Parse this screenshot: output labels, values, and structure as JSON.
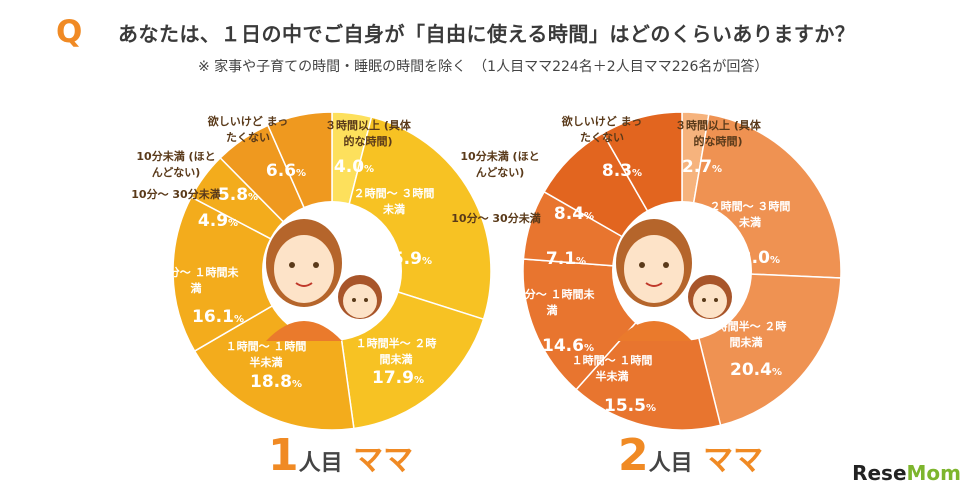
{
  "header": {
    "q_mark": "Q",
    "question": "あなたは、１日の中でご自身が「自由に使える時間」はどのくらいありますか？",
    "note": "※ 家事や子育ての時間・睡眠の時間を除く　（1人目ママ224名＋2人目ママ226名が回答）"
  },
  "brand": {
    "prefix": "Rese",
    "suffix": "Mom"
  },
  "chart_data": [
    {
      "type": "pie",
      "title": "1人目ママ",
      "categories": [
        "3時間以上 (具体的な時間)",
        "2時間～3時間未満",
        "1時間半～2時間未満",
        "1時間～1時間半未満",
        "30分～1時間未満",
        "10分～30分未満",
        "10分未満 (ほとんどない)",
        "欲しいけど まったくない"
      ],
      "values": [
        4.0,
        25.9,
        17.9,
        18.8,
        16.1,
        4.9,
        5.8,
        6.6
      ],
      "colors": [
        "#fde05c",
        "#f7c223",
        "#f7c223",
        "#f3ac1c",
        "#f3ac1c",
        "#f3ac1c",
        "#ef991f",
        "#ef991f"
      ],
      "labels": [
        {
          "cat": "３時間以上",
          "sub": "(具体的な時間)",
          "pct": "4.0"
        },
        {
          "cat": "２時間～ ３時間未満",
          "pct": "25.9"
        },
        {
          "cat": "１時間半～ ２時間未満",
          "pct": "17.9"
        },
        {
          "cat": "１時間～ １時間半未満",
          "pct": "18.8"
        },
        {
          "cat": "30分～ １時間未満",
          "pct": "16.1"
        },
        {
          "cat": "10分～ 30分未満",
          "pct": "4.9"
        },
        {
          "cat": "10分未満 (ほとんどない)",
          "pct": "5.8"
        },
        {
          "cat": "欲しいけど まったくない",
          "pct": "6.6"
        }
      ]
    },
    {
      "type": "pie",
      "title": "2人目ママ",
      "categories": [
        "3時間以上 (具体的な時間)",
        "2時間～3時間未満",
        "1時間半～2時間未満",
        "1時間～1時間半未満",
        "30分～1時間未満",
        "10分～30分未満",
        "10分未満 (ほとんどない)",
        "欲しいけど まったくない"
      ],
      "values": [
        2.7,
        23.0,
        20.4,
        15.5,
        14.6,
        7.1,
        8.4,
        8.3
      ],
      "colors": [
        "#f6b37d",
        "#ef9252",
        "#ef9252",
        "#e8752f",
        "#e8752f",
        "#e8752f",
        "#e2651f",
        "#e2651f"
      ],
      "labels": [
        {
          "cat": "３時間以上",
          "sub": "(具体的な時間)",
          "pct": "2.7"
        },
        {
          "cat": "２時間～ ３時間未満",
          "pct": "23.0"
        },
        {
          "cat": "１時間半～ ２時間未満",
          "pct": "20.4"
        },
        {
          "cat": "１時間～ １時間半未満",
          "pct": "15.5"
        },
        {
          "cat": "30分～ １時間未満",
          "pct": "14.6"
        },
        {
          "cat": "10分～ 30分未満",
          "pct": "7.1"
        },
        {
          "cat": "10分未満 (ほとんどない)",
          "pct": "8.4"
        },
        {
          "cat": "欲しいけど まったくない",
          "pct": "8.3"
        }
      ]
    }
  ],
  "captions": [
    {
      "num": "1",
      "mid": "人目",
      "tail": "ママ"
    },
    {
      "num": "2",
      "mid": "人目",
      "tail": "ママ"
    }
  ]
}
